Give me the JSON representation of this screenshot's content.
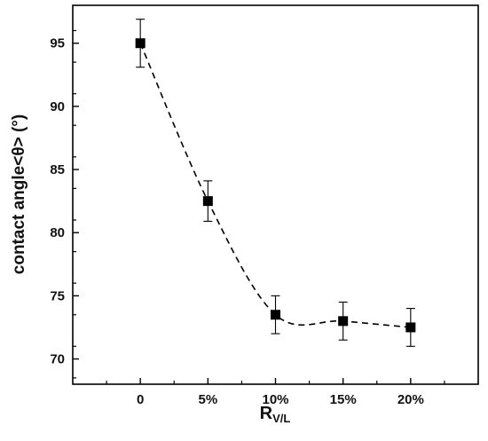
{
  "chart_data": {
    "type": "scatter",
    "title": "",
    "xlabel": "R",
    "xlabel_subscript": "V/L",
    "ylabel": "contact angle<θ> (°)",
    "categories": [
      "0",
      "5%",
      "10%",
      "15%",
      "20%"
    ],
    "x": [
      0,
      5,
      10,
      15,
      20
    ],
    "xlim": [
      -5,
      25
    ],
    "ylim": [
      68,
      98
    ],
    "yticks": [
      70,
      75,
      80,
      85,
      90,
      95
    ],
    "series": [
      {
        "values": [
          95.0,
          82.5,
          73.5,
          73.0,
          72.5
        ],
        "error": [
          1.9,
          1.6,
          1.5,
          1.5,
          1.5
        ],
        "marker": "square",
        "color": "#000000",
        "fit_line": "dashed"
      }
    ],
    "grid": false,
    "legend": "none"
  }
}
